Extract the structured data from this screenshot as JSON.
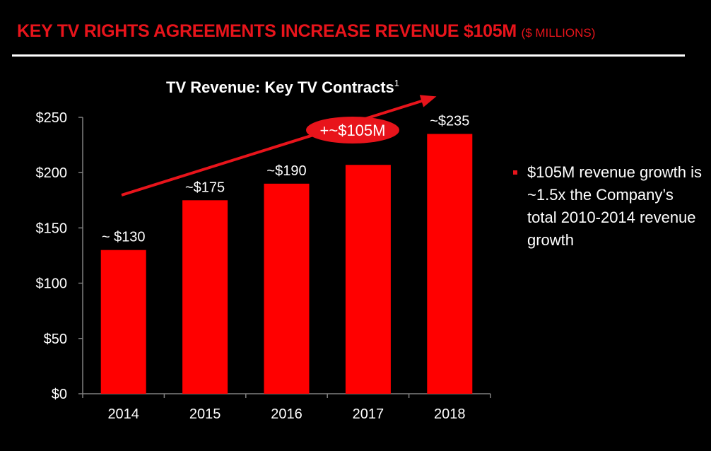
{
  "header": {
    "title": "KEY TV RIGHTS AGREEMENTS INCREASE REVENUE $105M",
    "subtitle": "($ MILLIONS)"
  },
  "colors": {
    "accent": "#e8141b",
    "background": "#000000",
    "text": "#ffffff"
  },
  "chart_data": {
    "type": "bar",
    "title": "TV Revenue: Key TV Contracts",
    "title_superscript": "1",
    "categories": [
      "2014",
      "2015",
      "2016",
      "2017",
      "2018"
    ],
    "values": [
      130,
      175,
      190,
      207,
      235
    ],
    "data_labels": [
      "~ $130",
      "~$175",
      "~$190",
      "",
      "~$235"
    ],
    "ylim": [
      0,
      250
    ],
    "yticks": [
      0,
      50,
      100,
      150,
      200,
      250
    ],
    "ytick_labels": [
      "$0",
      "$50",
      "$100",
      "$150",
      "$200",
      "$250"
    ],
    "xlabel": "",
    "ylabel": "",
    "bar_color": "#ff0000",
    "annotation": {
      "label": "+~$105M",
      "type": "trend-arrow"
    }
  },
  "bullet": {
    "text": "$105M revenue growth is ~1.5x the Company’s total 2010-2014 revenue growth"
  }
}
